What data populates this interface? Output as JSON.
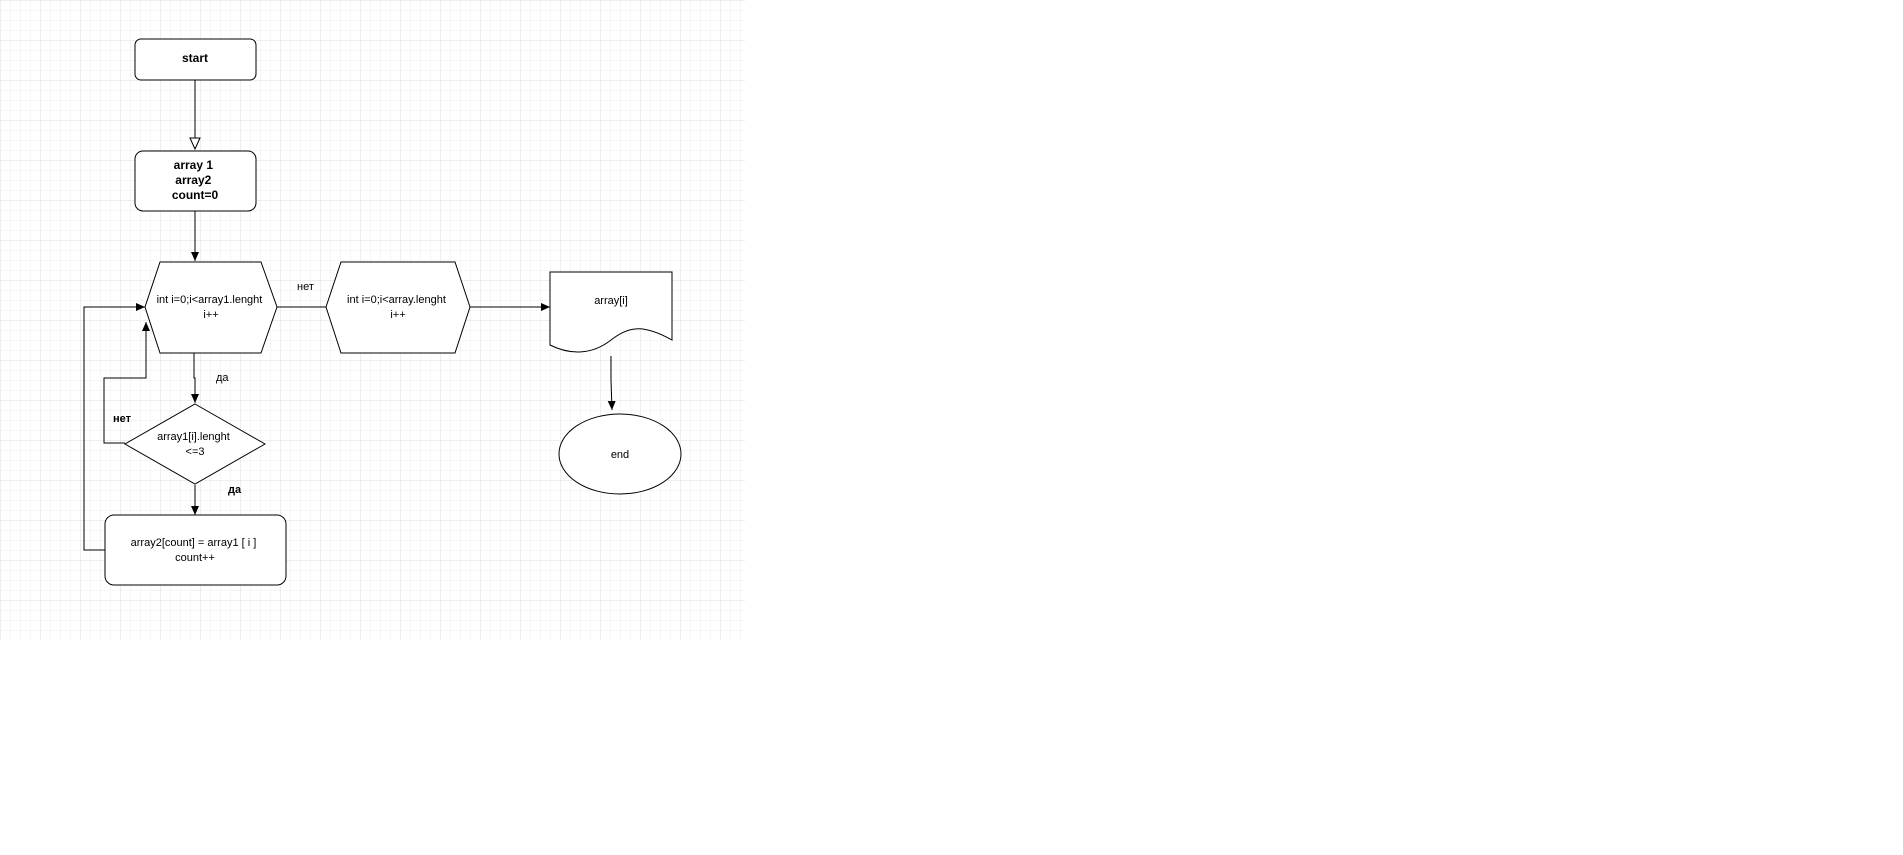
{
  "diagram": {
    "nodes": {
      "start": {
        "lines": [
          "start"
        ]
      },
      "init": {
        "lines": [
          "array 1",
          "array2",
          "count=0"
        ]
      },
      "loop1": {
        "lines": [
          "int i=0;i<array1.lenght",
          "i++"
        ]
      },
      "loop2": {
        "lines": [
          "int i=0;i<array.lenght",
          "i++"
        ]
      },
      "output": {
        "lines": [
          "array[i]"
        ]
      },
      "decision": {
        "lines": [
          "array1[i].lenght",
          "<=3"
        ]
      },
      "assign": {
        "lines": [
          "array2[count] = array1 [ i ]",
          "count++"
        ]
      },
      "end": {
        "lines": [
          "end"
        ]
      }
    },
    "edge_labels": {
      "loop1_to_loop2": "нет",
      "loop1_to_decision": "да",
      "decision_no": "нет",
      "decision_yes": "да"
    },
    "colors": {
      "stroke": "#000000",
      "fill": "#ffffff",
      "grid_minor": "#ececec",
      "grid_major": "#d9d9d9"
    }
  }
}
